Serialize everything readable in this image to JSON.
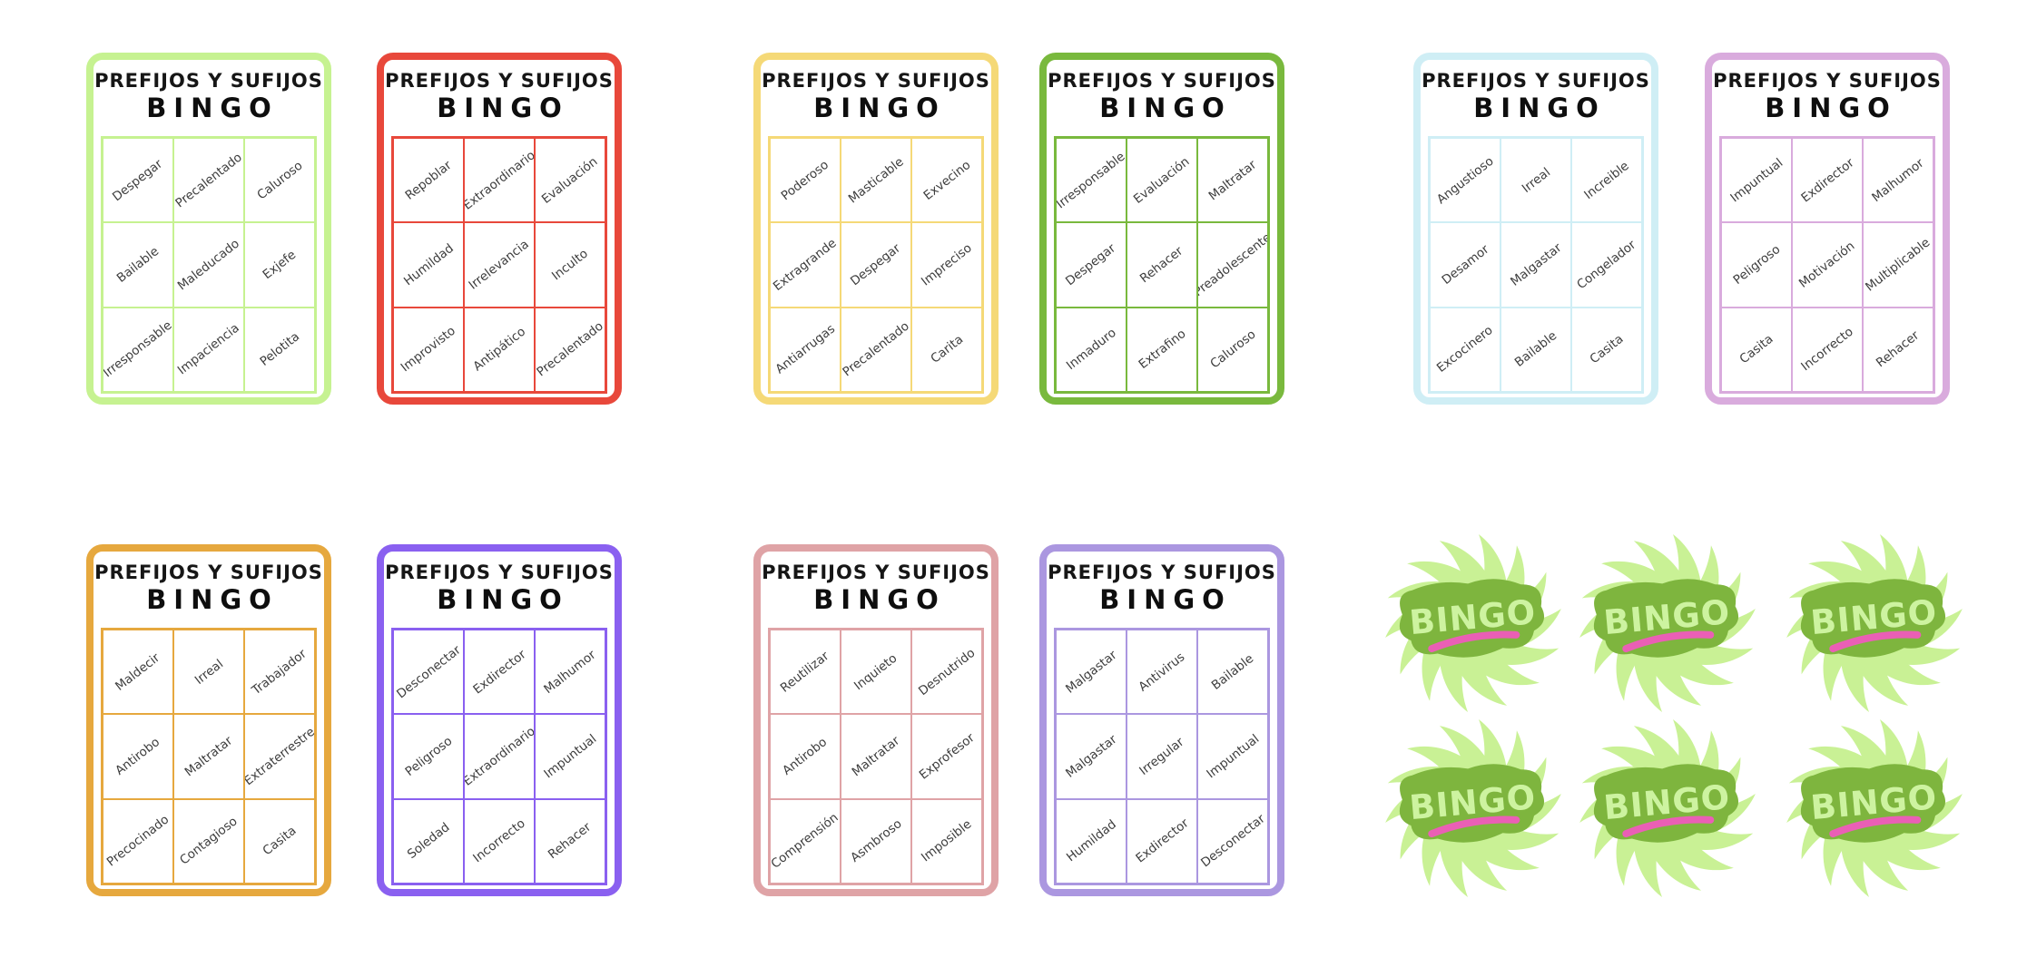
{
  "shared": {
    "title": "PREFIJOS Y SUFIJOS",
    "subtitle": "BINGO"
  },
  "cards": [
    {
      "theme": "lime",
      "color": "#c6f291",
      "words": [
        [
          "Despegar",
          "Precalentado",
          "Caluroso"
        ],
        [
          "Bailable",
          "Maleducado",
          "Exjefe"
        ],
        [
          "Irresponsable",
          "Impaciencia",
          "Pelotita"
        ]
      ]
    },
    {
      "theme": "red",
      "color": "#e8483b",
      "words": [
        [
          "Repoblar",
          "Extraordinario",
          "Evaluación"
        ],
        [
          "Humildad",
          "Irrelevancia",
          "Inculto"
        ],
        [
          "Improvisto",
          "Antipático",
          "Precalentado"
        ]
      ]
    },
    {
      "theme": "yellow",
      "color": "#f5d977",
      "words": [
        [
          "Poderoso",
          "Masticable",
          "Exvecino"
        ],
        [
          "Extragrande",
          "Despegar",
          "Impreciso"
        ],
        [
          "Antiarrugas",
          "Precalentado",
          "Carita"
        ]
      ]
    },
    {
      "theme": "green",
      "color": "#79b93d",
      "words": [
        [
          "Irresponsable",
          "Evaluación",
          "Maltratar"
        ],
        [
          "Despegar",
          "Rehacer",
          "Preadolescente"
        ],
        [
          "Inmaduro",
          "Extrafino",
          "Caluroso"
        ]
      ]
    },
    {
      "theme": "cyan",
      "color": "#cfeef5",
      "words": [
        [
          "Angustioso",
          "Irreal",
          "Increible"
        ],
        [
          "Desamor",
          "Malgastar",
          "Congelador"
        ],
        [
          "Excocinero",
          "Bailable",
          "Casita"
        ]
      ]
    },
    {
      "theme": "plum",
      "color": "#d9abdd",
      "words": [
        [
          "Impuntual",
          "Exdirector",
          "Malhumor"
        ],
        [
          "Peligroso",
          "Motivación",
          "Multiplicable"
        ],
        [
          "Casita",
          "Incorrecto",
          "Rehacer"
        ]
      ]
    },
    {
      "theme": "orange",
      "color": "#e6a83e",
      "words": [
        [
          "Maldecir",
          "Irreal",
          "Trabajador"
        ],
        [
          "Antirobo",
          "Maltratar",
          "Extraterrestre"
        ],
        [
          "Precocinado",
          "Contagioso",
          "Casita"
        ]
      ]
    },
    {
      "theme": "purple",
      "color": "#8a60f0",
      "words": [
        [
          "Desconectar",
          "Exdirector",
          "Malhumor"
        ],
        [
          "Peligroso",
          "Extraordinario",
          "Impuntual"
        ],
        [
          "Soledad",
          "Incorrecto",
          "Rehacer"
        ]
      ]
    },
    {
      "theme": "rose",
      "color": "#dfa3a6",
      "words": [
        [
          "Reutilizar",
          "Inquieto",
          "Desnutrido"
        ],
        [
          "Antirobo",
          "Maltratar",
          "Exprofesor"
        ],
        [
          "Comprensión",
          "Asmbroso",
          "Imposible"
        ]
      ]
    },
    {
      "theme": "violet",
      "color": "#ab97e0",
      "words": [
        [
          "Malgastar",
          "Antivirus",
          "Bailable"
        ],
        [
          "Malgastar",
          "Irregular",
          "Impuntual"
        ],
        [
          "Humildad",
          "Exdirector",
          "Desconectar"
        ]
      ]
    }
  ],
  "badges": {
    "label": "BINGO",
    "count": 6,
    "swirl_color": "#c9f195",
    "blob_color": "#7eb53e",
    "letter_color": "#cdf3a0",
    "underline_color": "#ea5fb5"
  }
}
